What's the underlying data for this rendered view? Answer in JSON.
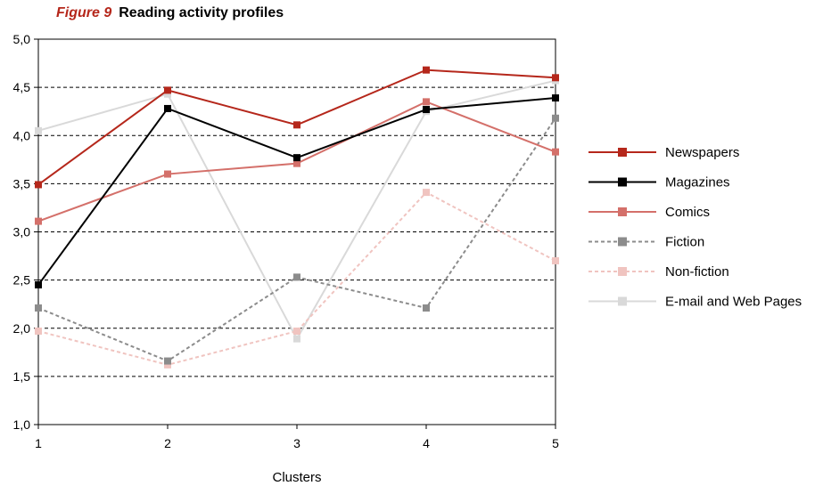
{
  "figure": {
    "number": "Figure 9",
    "title": "Reading activity profiles"
  },
  "chart_data": {
    "type": "line",
    "title": "Reading activity profiles",
    "xlabel": "Clusters",
    "ylabel": "",
    "x": [
      1,
      2,
      3,
      4,
      5
    ],
    "x_tick_labels": [
      "1",
      "2",
      "3",
      "4",
      "5"
    ],
    "ylim": [
      1.0,
      5.0
    ],
    "y_ticks": [
      1.0,
      1.5,
      2.0,
      2.5,
      3.0,
      3.5,
      4.0,
      4.5,
      5.0
    ],
    "y_tick_labels": [
      "1,0",
      "1,5",
      "2,0",
      "2,5",
      "3,0",
      "3,5",
      "4,0",
      "4,5",
      "5,0"
    ],
    "grid": "horizontal dashed",
    "legend_position": "right",
    "series": [
      {
        "name": "Newspapers",
        "values": [
          3.49,
          4.47,
          4.11,
          4.68,
          4.6
        ],
        "color": "#b5271b",
        "dash": "solid"
      },
      {
        "name": "Magazines",
        "values": [
          2.45,
          4.28,
          3.77,
          4.27,
          4.39
        ],
        "color": "#000000",
        "dash": "solid"
      },
      {
        "name": "Comics",
        "values": [
          3.11,
          3.6,
          3.71,
          4.35,
          3.83
        ],
        "color": "#d4706a",
        "dash": "solid"
      },
      {
        "name": "Fiction",
        "values": [
          2.21,
          1.66,
          2.53,
          2.21,
          4.18
        ],
        "color": "#8c8c8c",
        "dash": "dashed"
      },
      {
        "name": "Non-fiction",
        "values": [
          1.97,
          1.62,
          1.97,
          3.41,
          2.7
        ],
        "color": "#f0c4c0",
        "dash": "dashed"
      },
      {
        "name": "E-mail and Web Pages",
        "values": [
          4.05,
          4.43,
          1.89,
          4.25,
          4.57
        ],
        "color": "#d9d9d9",
        "dash": "solid"
      }
    ]
  }
}
